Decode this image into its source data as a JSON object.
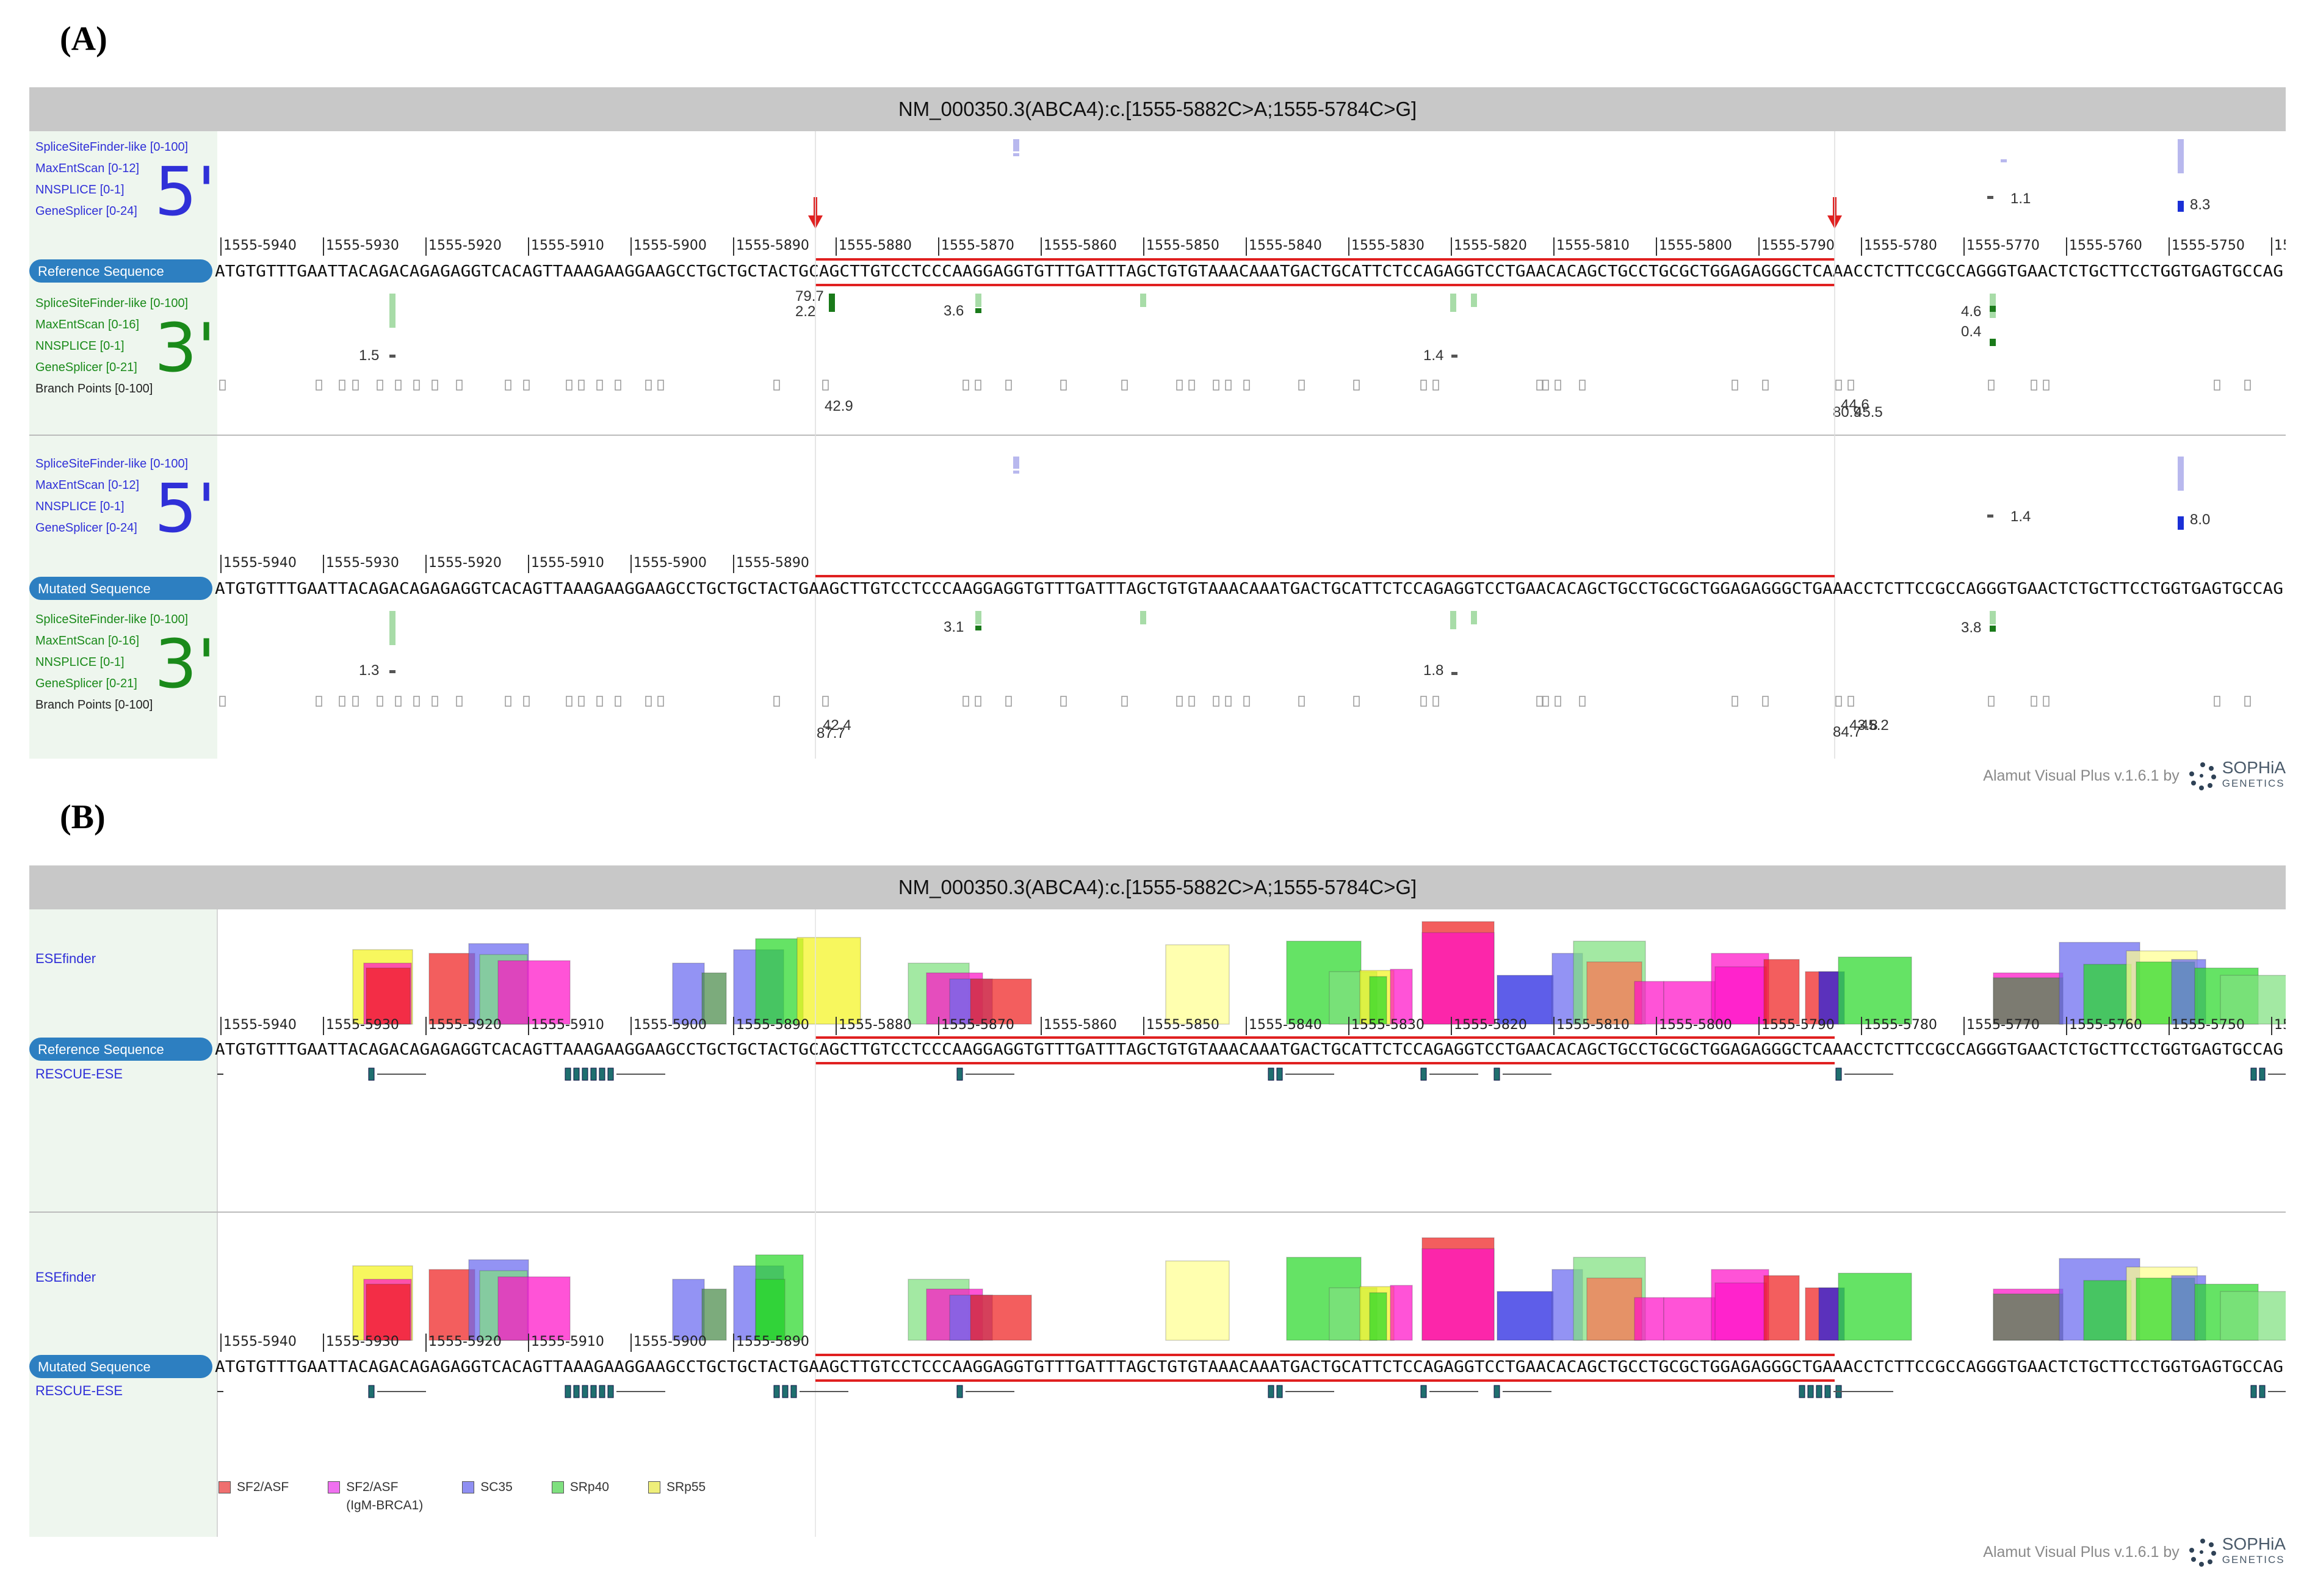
{
  "panels": {
    "a_label": "(A)",
    "b_label": "(B)"
  },
  "variant_title": "NM_000350.3(ABCA4):c.[1555-5882C>A;1555-5784C>G]",
  "positions": [
    "1555-5940",
    "1555-5930",
    "1555-5920",
    "1555-5910",
    "1555-5900",
    "1555-5890",
    "1555-5880",
    "1555-5870",
    "1555-5860",
    "1555-5850",
    "1555-5840",
    "1555-5830",
    "1555-5820",
    "1555-5810",
    "1555-5800",
    "1555-5790",
    "1555-5780",
    "1555-5770",
    "1555-5760",
    "1555-5750",
    "15"
  ],
  "mutated_positions": [
    "1555-5940",
    "1555-5930",
    "1555-5920",
    "1555-5910",
    "1555-5900",
    "1555-5890"
  ],
  "reference_sequence": "ATGTGTTTGAATTACAGACAGAGAGGTCACAGTTAAAGAAGGAAGCCTGCTGCTACTGCAGCTTGTCCTCCCAAGGAGGTGTTTGATTTAGCTGTGTAAACAAATGACTGCATTCTCCAGAGGTCCTGAACACAGCTGCCTGCGCTGGAGAGGGCTCAAACCTCTTCCGCCAGGGTGAACTCTGCTTCCTGGTGAGTGCCAG",
  "mutated_sequence": "ATGTGTTTGAATTACAGACAGAGAGGTCACAGTTAAAGAAGGAAGCCTGCTGCTACTGAAGCTTGTCCTCCCAAGGAGGTGTTTGATTTAGCTGTGTAAACAAATGACTGCATTCTCCAGAGGTCCTGAACACAGCTGCCTGCGCTGGAGAGGGCTGAAACCTCTTCCGCCAGGGTGAACTCTGCTTCCTGGTGAGTGCCAG",
  "labels": {
    "reference_sequence": "Reference Sequence",
    "mutated_sequence": "Mutated Sequence",
    "esefinder": "ESEfinder",
    "rescue_ese": "RESCUE-ESE",
    "big5": "5'",
    "big3": "3'"
  },
  "five_prime_tracks": [
    "SpliceSiteFinder-like [0-100]",
    "MaxEntScan [0-12]",
    "NNSPLICE [0-1]",
    "GeneSplicer [0-24]"
  ],
  "three_prime_tracks": [
    "SpliceSiteFinder-like [0-100]",
    "MaxEntScan [0-16]",
    "NNSPLICE [0-1]",
    "GeneSplicer [0-21]"
  ],
  "branch_points": "Branch Points [0-100]",
  "scores_ref": {
    "five_a": "1.1",
    "five_b": "8.3",
    "three_a": "1.5",
    "three_b": "79.7",
    "three_c": "2.2",
    "three_d": "3.6",
    "three_e": "1.4",
    "three_f": "4.6",
    "three_g": "0.4",
    "bp_a": "42.9",
    "bp_b": "44.6",
    "bp_c": "80.9",
    "bp_d": "45.5"
  },
  "scores_mut": {
    "five_a": "1.4",
    "five_b": "8.0",
    "three_a": "1.3",
    "three_b": "3.1",
    "three_c": "1.8",
    "three_d": "3.8",
    "bp_a": "42.4",
    "bp_b": "87.7",
    "bp_c": "43.8",
    "bp_d": "84.7",
    "bp_e": "45.2"
  },
  "credit": {
    "text": "Alamut Visual Plus v.1.6.1 by",
    "brand": "SOPHiA",
    "brand_sub": "GENETICS"
  },
  "legend": [
    {
      "name": "SF2/ASF",
      "sub": "",
      "color": "#ef6f6f"
    },
    {
      "name": "SF2/ASF",
      "sub": "(IgM-BRCA1)",
      "color": "#ef70ef"
    },
    {
      "name": "SC35",
      "sub": "",
      "color": "#8f8ff2"
    },
    {
      "name": "SRp40",
      "sub": "",
      "color": "#7fe07f"
    },
    {
      "name": "SRp55",
      "sub": "",
      "color": "#efef7a"
    }
  ],
  "colors": {
    "track_blue": "#1a2fd6",
    "track_green": "#1a7a1a",
    "seq_bar": "#2d7fc1",
    "variant_line": "#e02020",
    "arrow": "#e02020"
  }
}
